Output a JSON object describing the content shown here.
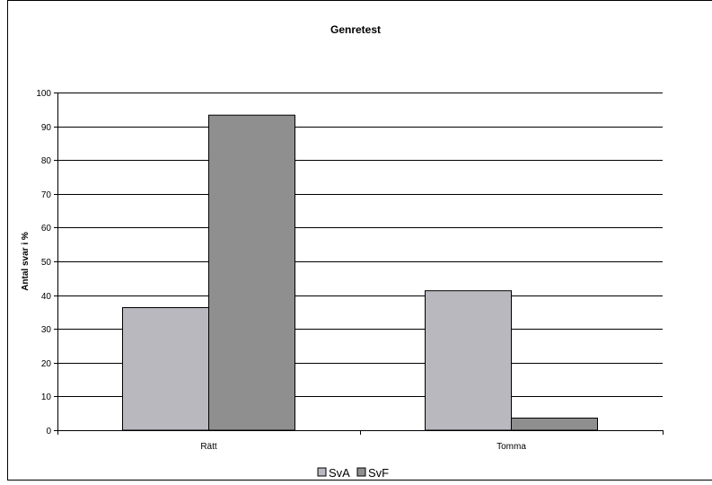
{
  "chart_data": {
    "type": "bar",
    "title": "Genretest",
    "xlabel": "",
    "ylabel": "Antal svar i %",
    "categories": [
      "Rätt",
      "Tomma"
    ],
    "series": [
      {
        "name": "SvA",
        "values": [
          36.3,
          41.3
        ],
        "color": "#b8b8be"
      },
      {
        "name": "SvF",
        "values": [
          93.3,
          3.6
        ],
        "color": "#8f8f8f"
      }
    ],
    "ylim": [
      0,
      100
    ],
    "yticks": [
      0,
      10,
      20,
      30,
      40,
      50,
      60,
      70,
      80,
      90,
      100
    ],
    "grid": true,
    "legend": "bottom"
  }
}
